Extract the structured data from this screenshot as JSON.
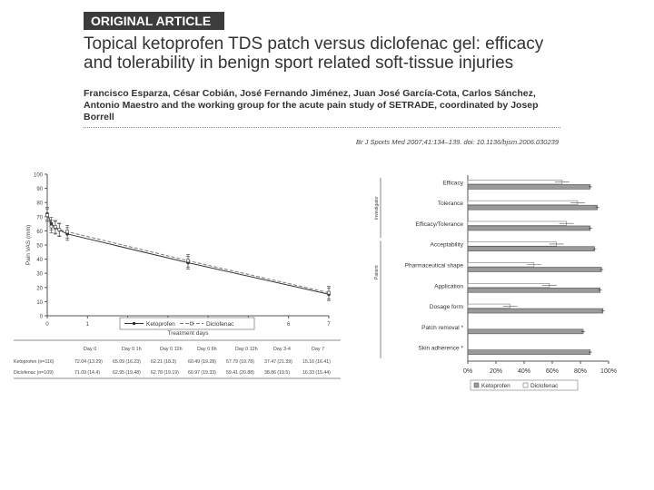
{
  "header": {
    "banner": "ORIGINAL ARTICLE",
    "title_line1": "Topical ketoprofen TDS patch versus diclofenac gel: efficacy",
    "title_line2": "and tolerability in benign sport related soft-tissue injuries",
    "authors_line1": "Francisco Esparza, César Cobián, José Fernando Jiménez, Juan José García-Cota, Carlos Sánchez,",
    "authors_line2": "Antonio Maestro and the working group for the acute pain study of SETRADE, coordinated by Josep",
    "authors_line3": "Borrell",
    "citation": "Br J Sports Med 2007;41:134–139. doi: 10.1136/bjsm.2006.030239"
  },
  "chart_data": [
    {
      "type": "line",
      "title": "",
      "xlabel": "Treatment days",
      "ylabel": "Pain VAS (mm)",
      "xlim": [
        0,
        7
      ],
      "ylim": [
        0,
        100
      ],
      "x_ticks": [
        "0",
        "1",
        "2",
        "3",
        "4",
        "5",
        "6",
        "7"
      ],
      "y_ticks": [
        "0",
        "10",
        "20",
        "30",
        "40",
        "50",
        "60",
        "70",
        "80",
        "90",
        "100"
      ],
      "series": [
        {
          "name": "Ketoprofen",
          "x": [
            0,
            0.1,
            0.2,
            0.3,
            0.5,
            3.5,
            7
          ],
          "y": [
            72.0,
            65.1,
            62.2,
            60.5,
            57.8,
            37.5,
            15.2
          ]
        },
        {
          "name": "Diclofenac",
          "x": [
            0,
            0.1,
            0.2,
            0.3,
            0.5,
            3.5,
            7
          ],
          "y": [
            71.1,
            63.0,
            62.8,
            60.9,
            59.4,
            38.9,
            16.3
          ]
        }
      ],
      "legend": [
        "Ketoprofen",
        "Diclofenac"
      ],
      "table": {
        "headers": [
          "",
          "Day 0",
          "Day 0 1h",
          "Day 0 12h",
          "Day 0 6h",
          "Day 0 12h",
          "Day 3-4",
          "Day 7"
        ],
        "rows": [
          [
            "Ketoprofen (n=116)",
            "72.04 (13.29)",
            "65.09 (16.23)",
            "62.21 (18.3)",
            "60.49 (19.28)",
            "57.79 (19.78)",
            "37.47 (21.39)",
            "15.16 (16.41)"
          ],
          [
            "Diclofenac (n=109)",
            "71.09 (14.4)",
            "62.95 (19.48)",
            "62.78 (19.19)",
            "60.97 (19.33)",
            "59.41 (20.88)",
            "38.86 (19.5)",
            "16.33 (15.44)"
          ]
        ]
      }
    },
    {
      "type": "bar",
      "orientation": "horizontal",
      "categories": [
        "Efficacy",
        "Tolerance",
        "Efficacy/Tolerance",
        "Acceptability",
        "Pharmaceutical shape",
        "Application",
        "Dosage form",
        "Patch removal *",
        "Skin adherence *"
      ],
      "group_labels": [
        "Investigator",
        "Patient"
      ],
      "series": [
        {
          "name": "Ketoprofen",
          "values": [
            87,
            92,
            87,
            90,
            95,
            94,
            96,
            82,
            87
          ]
        },
        {
          "name": "Diclofenac",
          "values": [
            67,
            78,
            70,
            63,
            47,
            58,
            30,
            null,
            null
          ]
        }
      ],
      "xlim": [
        0,
        100
      ],
      "x_ticks": [
        "0%",
        "20%",
        "40%",
        "60%",
        "80%",
        "100%"
      ],
      "legend": [
        "Ketoprofen",
        "Diclofenac"
      ]
    }
  ]
}
